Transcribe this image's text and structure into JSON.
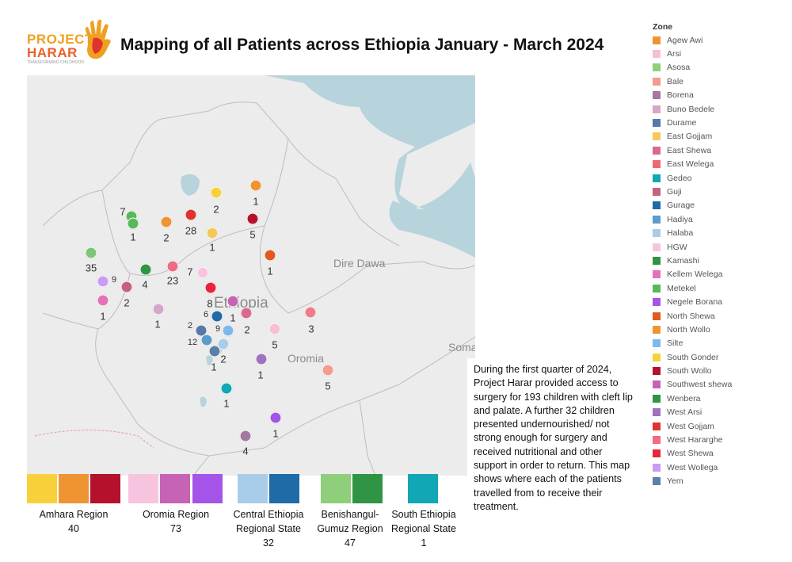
{
  "logo": {
    "line1": "PROJECT",
    "line2": "HARAR",
    "tagline": "TRANSFORMING CHILDHOOD"
  },
  "title": "Mapping of all Patients across Ethiopia January - March 2024",
  "map": {
    "place_labels": {
      "dire_dawa": "Dire Dawa",
      "ethiopia": "Ethiopia",
      "somali": "Somali",
      "oromia": "Oromia"
    },
    "markers": [
      {
        "zone": "Metekel",
        "count": "35",
        "color": "#7cc67a"
      },
      {
        "zone": "Metekel",
        "count": "7",
        "color": "#58b85a"
      },
      {
        "zone": "Metekel",
        "count": "1",
        "color": "#58b85a"
      },
      {
        "zone": "North Wollo",
        "count": "2",
        "color": "#ef9433"
      },
      {
        "zone": "West Gojjam",
        "count": "28",
        "color": "#e1332e"
      },
      {
        "zone": "South Gonder",
        "count": "2",
        "color": "#f8d13a"
      },
      {
        "zone": "East Gojjam",
        "count": "1",
        "color": "#f5c85a"
      },
      {
        "zone": "North Wollo",
        "count": "1",
        "color": "#ef9433"
      },
      {
        "zone": "South Wollo",
        "count": "5",
        "color": "#b5112c"
      },
      {
        "zone": "North Shewa",
        "count": "1",
        "color": "#e05a1e"
      },
      {
        "zone": "Kamashi",
        "count": "4",
        "color": "#2f9544"
      },
      {
        "zone": "West Hararghe",
        "count": "23",
        "color": "#ef6b86"
      },
      {
        "zone": "HGW",
        "count": "7",
        "color": "#f7c4e0"
      },
      {
        "zone": "West Wollega",
        "count": "9",
        "color": "#c99bf2"
      },
      {
        "zone": "Guji",
        "count": "2",
        "color": "#c46280"
      },
      {
        "zone": "Kellem Welega",
        "count": "1",
        "color": "#e671b8"
      },
      {
        "zone": "Buno Bedele",
        "count": "1",
        "color": "#d5a6c8"
      },
      {
        "zone": "West Shewa",
        "count": "8",
        "color": "#e8263a"
      },
      {
        "zone": "Southwest shewa",
        "count": "1",
        "color": "#c763b5"
      },
      {
        "zone": "Gurage",
        "count": "6",
        "color": "#1f6ba8"
      },
      {
        "zone": "East Shewa",
        "count": "2",
        "color": "#d96a8e"
      },
      {
        "zone": "Bale",
        "count": "3",
        "color": "#f07b8a"
      },
      {
        "zone": "Arsi",
        "count": "5",
        "color": "#f7c0d0"
      },
      {
        "zone": "Durame",
        "count": "2",
        "color": "#5679a8"
      },
      {
        "zone": "Silte",
        "count": "9",
        "color": "#7eb8ea"
      },
      {
        "zone": "Hadiya",
        "count": "12",
        "color": "#5a9ccc"
      },
      {
        "zone": "Halaba",
        "count": "2",
        "color": "#a9cde8"
      },
      {
        "zone": "Yem",
        "count": "1",
        "color": "#5b7fa8"
      },
      {
        "zone": "West Arsi",
        "count": "1",
        "color": "#a071bf"
      },
      {
        "zone": "Bale",
        "count": "5",
        "color": "#f49a90"
      },
      {
        "zone": "Gedeo",
        "count": "1",
        "color": "#11a7b5"
      },
      {
        "zone": "Negele Borana",
        "count": "1",
        "color": "#a454e8"
      },
      {
        "zone": "Borena",
        "count": "4",
        "color": "#a6779f"
      }
    ]
  },
  "summary": "During the first quarter of 2024, Project Harar provided access to surgery for 193 children with cleft lip and palate. A further 32 children presented undernourished/ not strong enough for surgery and received nutritional and other support in order to return. This map shows where each of the patients travelled from to receive their treatment.",
  "legend": {
    "title": "Zone",
    "items": [
      {
        "label": "Agew Awi",
        "color": "#ef9433"
      },
      {
        "label": "Arsi",
        "color": "#f7c0d0"
      },
      {
        "label": "Asosa",
        "color": "#8fcf7c"
      },
      {
        "label": "Bale",
        "color": "#f49a90"
      },
      {
        "label": "Borena",
        "color": "#a6779f"
      },
      {
        "label": "Buno Bedele",
        "color": "#d5a6c8"
      },
      {
        "label": "Durame",
        "color": "#5679a8"
      },
      {
        "label": "East Gojjam",
        "color": "#f5c85a"
      },
      {
        "label": "East Shewa",
        "color": "#d96a8e"
      },
      {
        "label": "East Welega",
        "color": "#ea6b74"
      },
      {
        "label": "Gedeo",
        "color": "#11a7b5"
      },
      {
        "label": "Guji",
        "color": "#c46280"
      },
      {
        "label": "Gurage",
        "color": "#1f6ba8"
      },
      {
        "label": "Hadiya",
        "color": "#5a9ccc"
      },
      {
        "label": "Halaba",
        "color": "#a9cde8"
      },
      {
        "label": "HGW",
        "color": "#f7c4e0"
      },
      {
        "label": "Kamashi",
        "color": "#2f9544"
      },
      {
        "label": "Kellem Welega",
        "color": "#e671b8"
      },
      {
        "label": "Metekel",
        "color": "#58b85a"
      },
      {
        "label": "Negele Borana",
        "color": "#a454e8"
      },
      {
        "label": "North Shewa",
        "color": "#e05a1e"
      },
      {
        "label": "North Wollo",
        "color": "#ef9433"
      },
      {
        "label": "Silte",
        "color": "#7eb8ea"
      },
      {
        "label": "South Gonder",
        "color": "#f8d13a"
      },
      {
        "label": "South Wollo",
        "color": "#b5112c"
      },
      {
        "label": "Southwest shewa",
        "color": "#c763b5"
      },
      {
        "label": "Wenbera",
        "color": "#2f9544"
      },
      {
        "label": "West Arsi",
        "color": "#a071bf"
      },
      {
        "label": "West Gojjam",
        "color": "#e1332e"
      },
      {
        "label": "West Hararghe",
        "color": "#ef6b86"
      },
      {
        "label": "West Shewa",
        "color": "#e8263a"
      },
      {
        "label": "West Wollega",
        "color": "#c99bf2"
      },
      {
        "label": "Yem",
        "color": "#5b7fa8"
      }
    ]
  },
  "regions": [
    {
      "name": "Amhara Region",
      "total": "40",
      "colors": [
        "#f8d13a",
        "#ef9433",
        "#b5112c"
      ]
    },
    {
      "name": "Oromia Region",
      "total": "73",
      "colors": [
        "#f7c4e0",
        "#c763b5",
        "#a454e8"
      ]
    },
    {
      "name": "Central Ethiopia Regional State",
      "total": "32",
      "colors": [
        "#a9cde8",
        "#1f6ba8"
      ]
    },
    {
      "name": "Benishangul-Gumuz Region",
      "total": "47",
      "colors": [
        "#8fcf7c",
        "#2f9544"
      ]
    },
    {
      "name": "South Ethiopia Regional State",
      "total": "1",
      "colors": [
        "#11a7b5"
      ]
    }
  ]
}
